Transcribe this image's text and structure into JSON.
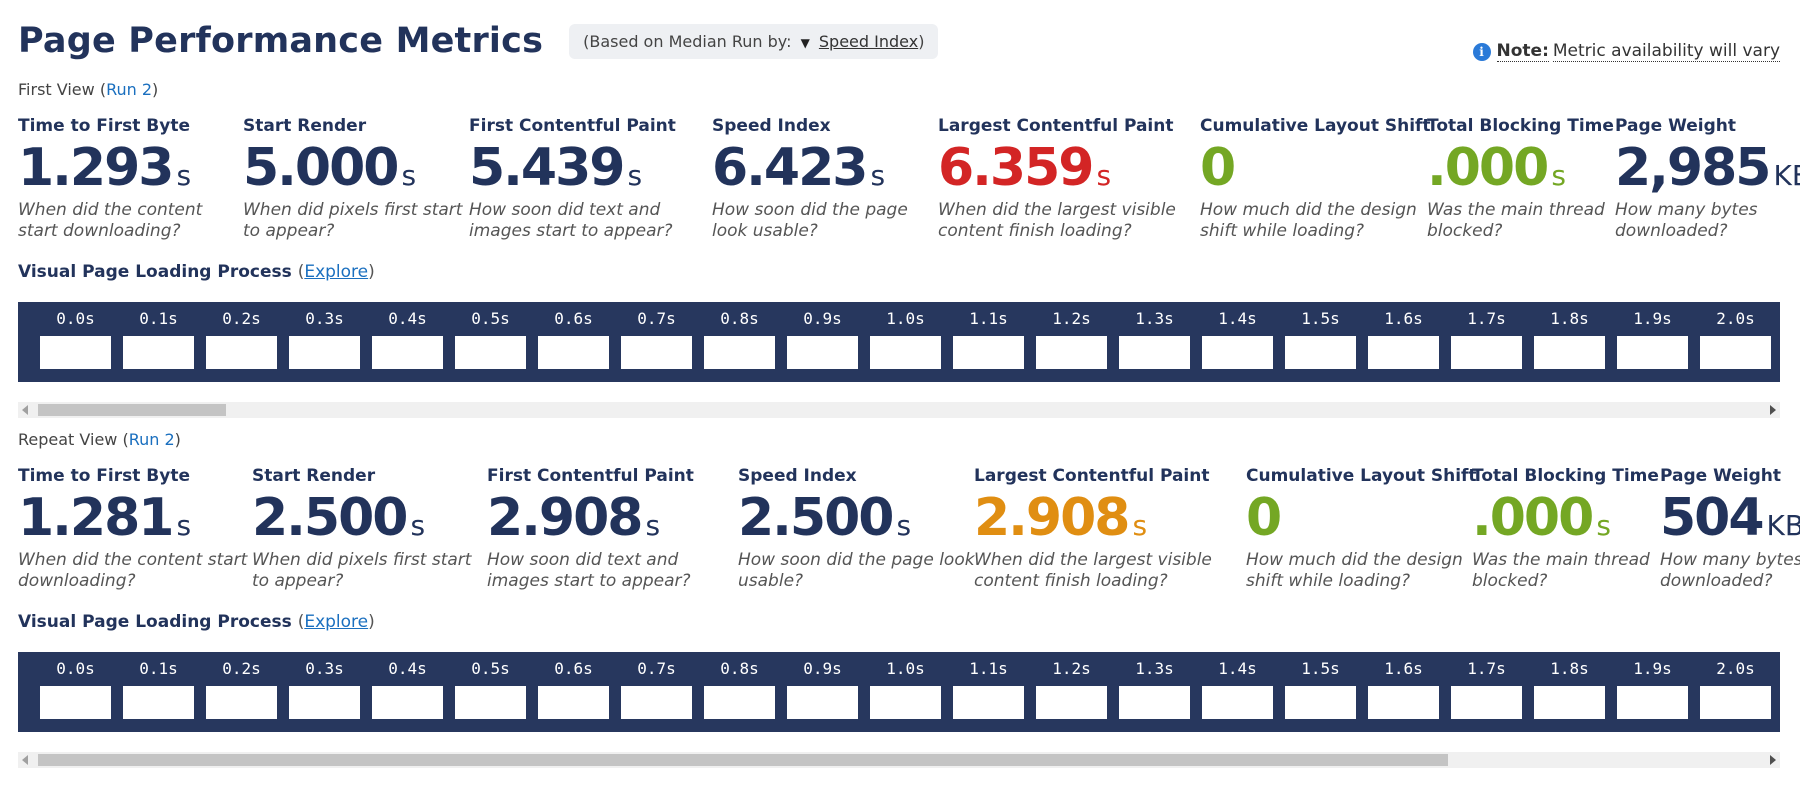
{
  "header": {
    "title": "Page Performance Metrics",
    "median_prefix": "(Based on Median Run by:",
    "median_icon": "triangle-down",
    "median_selected": "Speed Index",
    "median_suffix": ")"
  },
  "note": {
    "bold": "Note:",
    "text": "Metric availability will vary"
  },
  "first_view": {
    "label": "First View",
    "run": "Run 2",
    "metrics": [
      {
        "label": "Time to First Byte",
        "value": "1.293",
        "unit": "s",
        "desc1": "When did the content",
        "desc2": "start downloading?"
      },
      {
        "label": "Start Render",
        "value": "5.000",
        "unit": "s",
        "desc1": "When did pixels first start",
        "desc2": "to appear?"
      },
      {
        "label": "First Contentful Paint",
        "value": "5.439",
        "unit": "s",
        "desc1": "How soon did text and",
        "desc2": "images start to appear?"
      },
      {
        "label": "Speed Index",
        "value": "6.423",
        "unit": "s",
        "desc1": "How soon did the page",
        "desc2": "look usable?"
      },
      {
        "label": "Largest Contentful Paint",
        "value": "6.359",
        "unit": "s",
        "desc1": "When did the largest visible",
        "desc2": "content finish loading?"
      },
      {
        "label": "Cumulative Layout Shift",
        "value": "0",
        "unit": "",
        "desc1": "How much did the design",
        "desc2": "shift while loading?"
      },
      {
        "label": "Total Blocking Time",
        "value": ".000",
        "unit": "s",
        "desc1": "Was the main thread",
        "desc2": "blocked?"
      },
      {
        "label": "Page Weight",
        "value": "2,985",
        "unit": "KB",
        "desc1": "How many bytes",
        "desc2": "downloaded?"
      }
    ],
    "visual_title": "Visual Page Loading Process",
    "explore": "Explore",
    "frames": [
      "0.0s",
      "0.1s",
      "0.2s",
      "0.3s",
      "0.4s",
      "0.5s",
      "0.6s",
      "0.7s",
      "0.8s",
      "0.9s",
      "1.0s",
      "1.1s",
      "1.2s",
      "1.3s",
      "1.4s",
      "1.5s",
      "1.6s",
      "1.7s",
      "1.8s",
      "1.9s",
      "2.0s"
    ]
  },
  "repeat_view": {
    "label": "Repeat View",
    "run": "Run 2",
    "metrics": [
      {
        "label": "Time to First Byte",
        "value": "1.281",
        "unit": "s",
        "desc1": "When did the content start",
        "desc2": "downloading?"
      },
      {
        "label": "Start Render",
        "value": "2.500",
        "unit": "s",
        "desc1": "When did pixels first start",
        "desc2": "to appear?"
      },
      {
        "label": "First Contentful Paint",
        "value": "2.908",
        "unit": "s",
        "desc1": "How soon did text and",
        "desc2": "images start to appear?"
      },
      {
        "label": "Speed Index",
        "value": "2.500",
        "unit": "s",
        "desc1": "How soon did the page look",
        "desc2": "usable?"
      },
      {
        "label": "Largest Contentful Paint",
        "value": "2.908",
        "unit": "s",
        "desc1": "When did the largest visible",
        "desc2": "content finish loading?"
      },
      {
        "label": "Cumulative Layout Shift",
        "value": "0",
        "unit": "",
        "desc1": "How much did the design",
        "desc2": "shift while loading?"
      },
      {
        "label": "Total Blocking Time",
        "value": ".000",
        "unit": "s",
        "desc1": "Was the main thread",
        "desc2": "blocked?"
      },
      {
        "label": "Page Weight",
        "value": "504",
        "unit": "KB",
        "desc1": "How many bytes",
        "desc2": "downloaded?"
      }
    ],
    "visual_title": "Visual Page Loading Process",
    "explore": "Explore",
    "frames": [
      "0.0s",
      "0.1s",
      "0.2s",
      "0.3s",
      "0.4s",
      "0.5s",
      "0.6s",
      "0.7s",
      "0.8s",
      "0.9s",
      "1.0s",
      "1.1s",
      "1.2s",
      "1.3s",
      "1.4s",
      "1.5s",
      "1.6s",
      "1.7s",
      "1.8s",
      "1.9s",
      "2.0s"
    ]
  },
  "colors": {
    "navy": "#22335b",
    "red": "#d32525",
    "green": "#74a724",
    "orange": "#e08e12",
    "filmstrip_bg": "#27375e",
    "link": "#1a6fbf"
  }
}
